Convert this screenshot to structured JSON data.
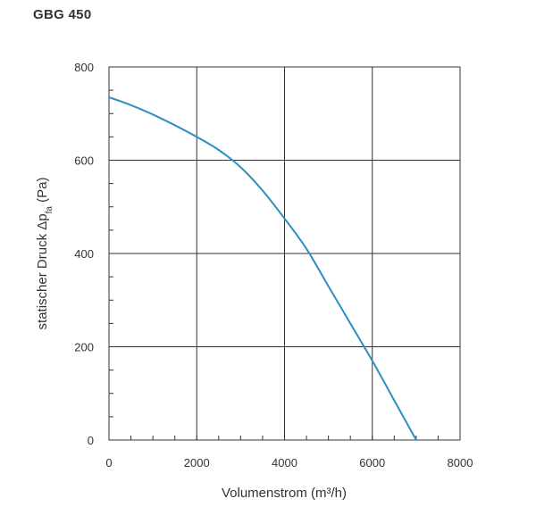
{
  "title": "GBG 450",
  "chart_data": {
    "type": "line",
    "title": "GBG 450",
    "xlabel": "Volumenstrom (m³/h)",
    "ylabel": {
      "prefix": "statischer Druck Δp",
      "subscript": "fa",
      "suffix": " (Pa)"
    },
    "xlim": [
      0,
      8000
    ],
    "ylim": [
      0,
      800
    ],
    "xticks": [
      0,
      2000,
      4000,
      6000,
      8000
    ],
    "yticks": [
      0,
      200,
      400,
      600,
      800
    ],
    "grid": true,
    "color": "#2a8fc1",
    "series": [
      {
        "x": [
          0,
          500,
          1000,
          1500,
          2000,
          2500,
          3000,
          3500,
          4000,
          4500,
          5000,
          5500,
          6000,
          6500,
          7000
        ],
        "y": [
          735,
          718,
          698,
          675,
          650,
          622,
          585,
          535,
          475,
          410,
          330,
          250,
          170,
          85,
          0
        ]
      }
    ]
  }
}
